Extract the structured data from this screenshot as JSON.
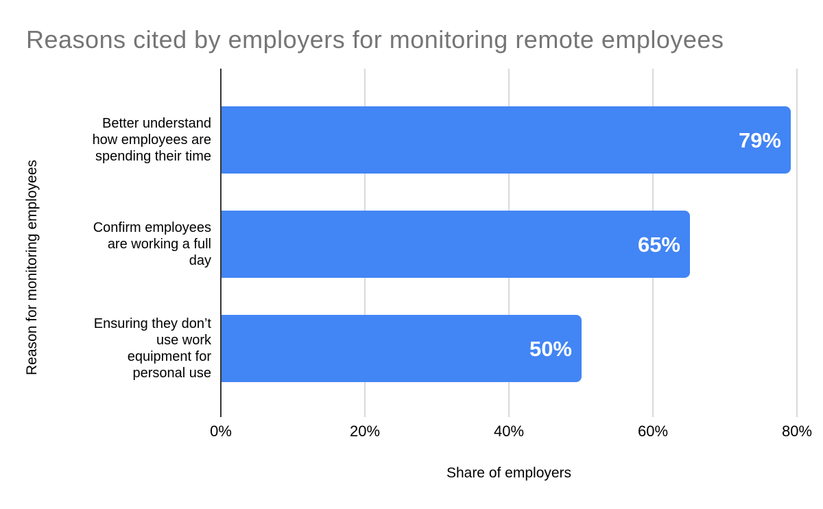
{
  "colors": {
    "bar": "#4285f4",
    "title_text": "#757575",
    "axis_line": "#333333",
    "gridline": "#d9d9d9",
    "label_text": "#000000",
    "value_label_text": "#ffffff",
    "background": "#ffffff"
  },
  "chart_data": {
    "type": "bar",
    "orientation": "horizontal",
    "title": "Reasons cited by employers for monitoring remote employees",
    "xlabel": "Share of employers",
    "ylabel": "Reason for monitoring employees",
    "xlim": [
      0,
      80
    ],
    "grid": true,
    "legend": "none",
    "bar_color": "#4285f4",
    "x_ticks": [
      {
        "value": 0,
        "label": "0%"
      },
      {
        "value": 20,
        "label": "20%"
      },
      {
        "value": 40,
        "label": "40%"
      },
      {
        "value": 60,
        "label": "60%"
      },
      {
        "value": 80,
        "label": "80%"
      }
    ],
    "categories": [
      "Better understand how employees are spending their time",
      "Confirm employees are working a full day",
      "Ensuring they don’t use work equipment for personal use"
    ],
    "values": [
      79,
      65,
      50
    ],
    "rows": [
      {
        "label": "Better understand how employees are spending their time",
        "label_lines": [
          "Better understand",
          "how employees are",
          "spending their time"
        ],
        "value": 79,
        "value_label": "79%"
      },
      {
        "label": "Confirm employees are working a full day",
        "label_lines": [
          "Confirm employees",
          "are working a full",
          "day"
        ],
        "value": 65,
        "value_label": "65%"
      },
      {
        "label": "Ensuring they don’t use work equipment for personal use",
        "label_lines": [
          "Ensuring they don’t",
          "use work",
          "equipment for",
          "personal use"
        ],
        "value": 50,
        "value_label": "50%"
      }
    ]
  }
}
